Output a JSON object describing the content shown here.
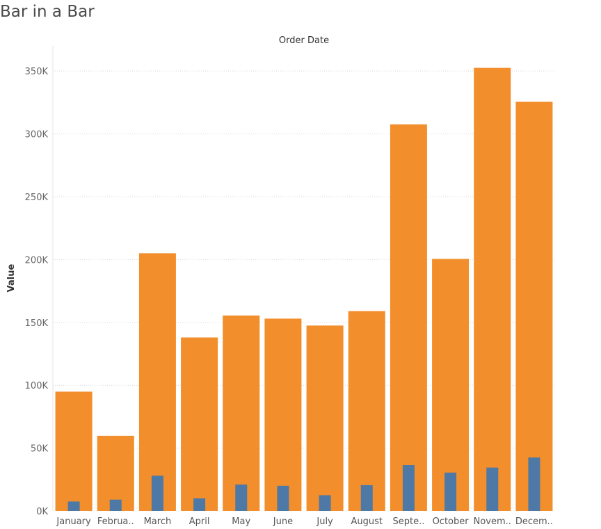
{
  "title": "Bar in a Bar",
  "chart_data": {
    "type": "bar",
    "title": "Bar in a Bar",
    "xlabel": "Order Date",
    "ylabel": "Value",
    "categories": [
      "January",
      "Februa..",
      "March",
      "April",
      "May",
      "June",
      "July",
      "August",
      "Septe..",
      "October",
      "Novem..",
      "Decem.."
    ],
    "series": [
      {
        "values": [
          94900,
          59800,
          205000,
          138000,
          155500,
          153000,
          147500,
          159000,
          307500,
          200500,
          352500,
          325500
        ],
        "color": "#f28e2b"
      },
      {
        "values": [
          7500,
          9000,
          28000,
          10000,
          21000,
          20000,
          12500,
          20500,
          36500,
          30500,
          34500,
          42500
        ],
        "color": "#4e79a7"
      }
    ],
    "ylim": [
      0,
      370000
    ],
    "yticks": [
      0,
      50000,
      100000,
      150000,
      200000,
      250000,
      300000,
      350000
    ],
    "ytick_labels": [
      "0K",
      "50K",
      "100K",
      "150K",
      "200K",
      "250K",
      "300K",
      "350K"
    ],
    "grid": true,
    "legend": "none"
  }
}
